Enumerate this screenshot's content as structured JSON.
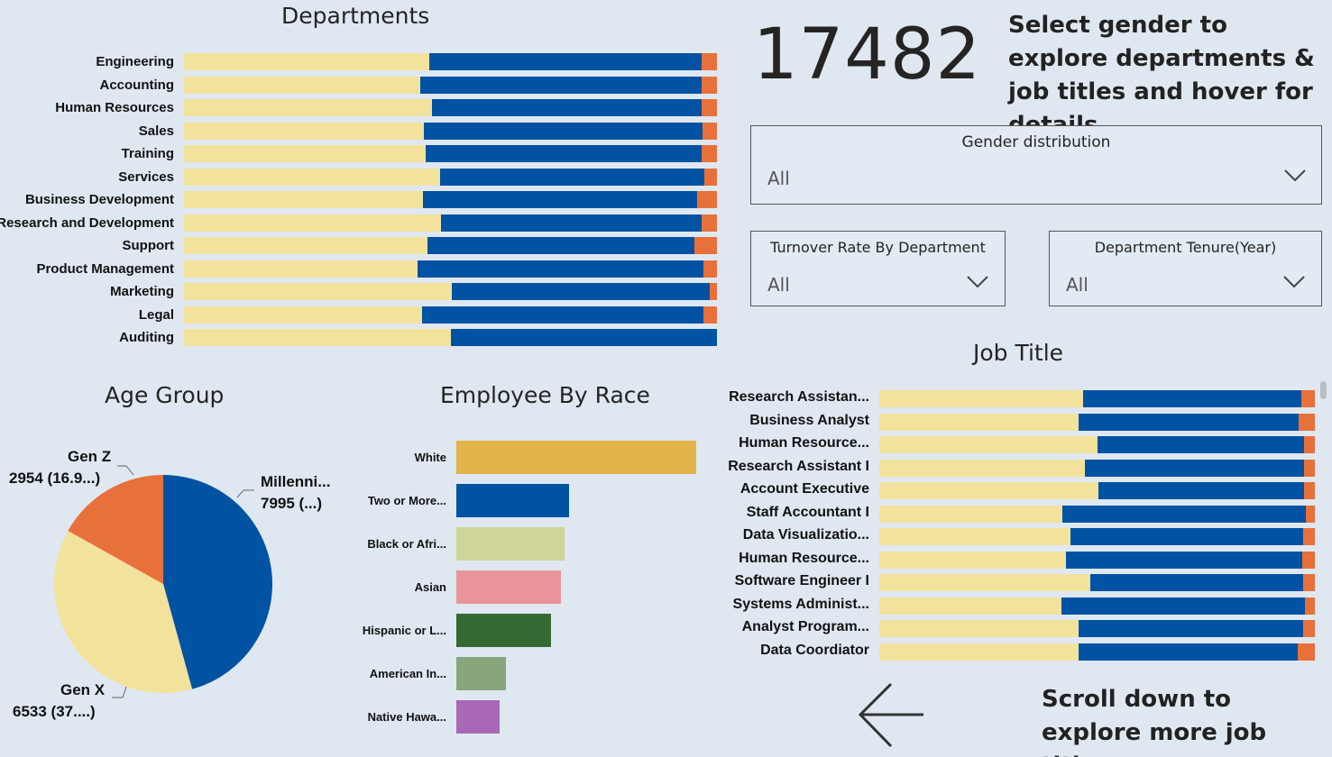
{
  "colors": {
    "female": "#f2e29c",
    "male": "#0052a3",
    "other": "#e8703a",
    "background": "#dfe8f1"
  },
  "departments": {
    "title": "Departments",
    "chart_data": {
      "type": "bar",
      "stacked": true,
      "normalized": true,
      "categories": [
        "Engineering",
        "Accounting",
        "Human Resources",
        "Sales",
        "Training",
        "Services",
        "Business Development",
        "Research and Development",
        "Support",
        "Product Management",
        "Marketing",
        "Legal",
        "Auditing"
      ],
      "series": [
        {
          "values": [
            46.0,
            44.4,
            46.6,
            45.0,
            45.3,
            48.0,
            44.9,
            48.2,
            45.7,
            43.9,
            50.2,
            44.7,
            50.0
          ]
        },
        {
          "values": [
            51.2,
            52.7,
            50.5,
            52.3,
            51.8,
            49.6,
            51.3,
            48.9,
            50.1,
            53.5,
            48.5,
            52.8,
            50.0
          ]
        },
        {
          "values": [
            2.8,
            2.9,
            2.9,
            2.7,
            2.9,
            2.4,
            3.8,
            2.9,
            4.2,
            2.6,
            1.3,
            2.5,
            0
          ]
        }
      ]
    }
  },
  "kpi": {
    "total_employees": "17482"
  },
  "instruction_top": "Select gender to explore departments & job titles and hover for details",
  "slicers": {
    "gender": {
      "title": "Gender distribution",
      "value": "All"
    },
    "turnover": {
      "title": "Turnover Rate By Department",
      "value": "All"
    },
    "tenure": {
      "title": "Department Tenure(Year)",
      "value": "All"
    }
  },
  "age_group": {
    "title": "Age Group",
    "chart_data": {
      "type": "pie",
      "slices": [
        {
          "name": "Millenni...",
          "value": 7995,
          "label": "7995 (...)"
        },
        {
          "name": "Gen X",
          "value": 6533,
          "label": "6533 (37....)"
        },
        {
          "name": "Gen Z",
          "value": 2954,
          "label": "2954 (16.9...)"
        }
      ],
      "colors": [
        "#0052a3",
        "#f2e29c",
        "#e8703a"
      ]
    }
  },
  "race": {
    "title": "Employee By Race",
    "chart_data": {
      "type": "bar",
      "orientation": "horizontal",
      "categories": [
        "White",
        "Two or More...",
        "Black or Afri...",
        "Asian",
        "Hispanic or L...",
        "American In...",
        "Native Hawa..."
      ],
      "values": [
        5000,
        2350,
        2250,
        2180,
        1970,
        1030,
        900
      ],
      "colors": [
        "#e3b44a",
        "#0052a3",
        "#cfd596",
        "#e8949a",
        "#366a33",
        "#88a67e",
        "#a867b7"
      ]
    }
  },
  "job_title": {
    "title": "Job Title",
    "chart_data": {
      "type": "bar",
      "stacked": true,
      "normalized": true,
      "categories": [
        "Research Assistan...",
        "Business Analyst",
        "Human Resource...",
        "Research Assistant I",
        "Account Executive",
        "Staff Accountant I",
        "Data Visualizatio...",
        "Human Resource...",
        "Software Engineer I",
        "Systems Administ...",
        "Analyst Program...",
        "Data Coordiator"
      ],
      "series": [
        {
          "values": [
            46.8,
            45.7,
            50.1,
            47.2,
            50.4,
            42.1,
            43.9,
            42.9,
            48.4,
            41.8,
            45.7,
            45.8
          ]
        },
        {
          "values": [
            50.1,
            50.5,
            47.5,
            50.4,
            47.2,
            55.9,
            53.4,
            54.3,
            49.0,
            55.9,
            51.6,
            50.3
          ]
        },
        {
          "values": [
            3.1,
            3.8,
            2.4,
            2.4,
            2.4,
            2.0,
            2.7,
            2.8,
            2.6,
            2.3,
            2.7,
            3.9
          ]
        }
      ]
    }
  },
  "instruction_bottom": "Scroll down to explore more job titles",
  "icons": {
    "back": "arrow-left-icon",
    "chevron": "chevron-down-icon"
  }
}
